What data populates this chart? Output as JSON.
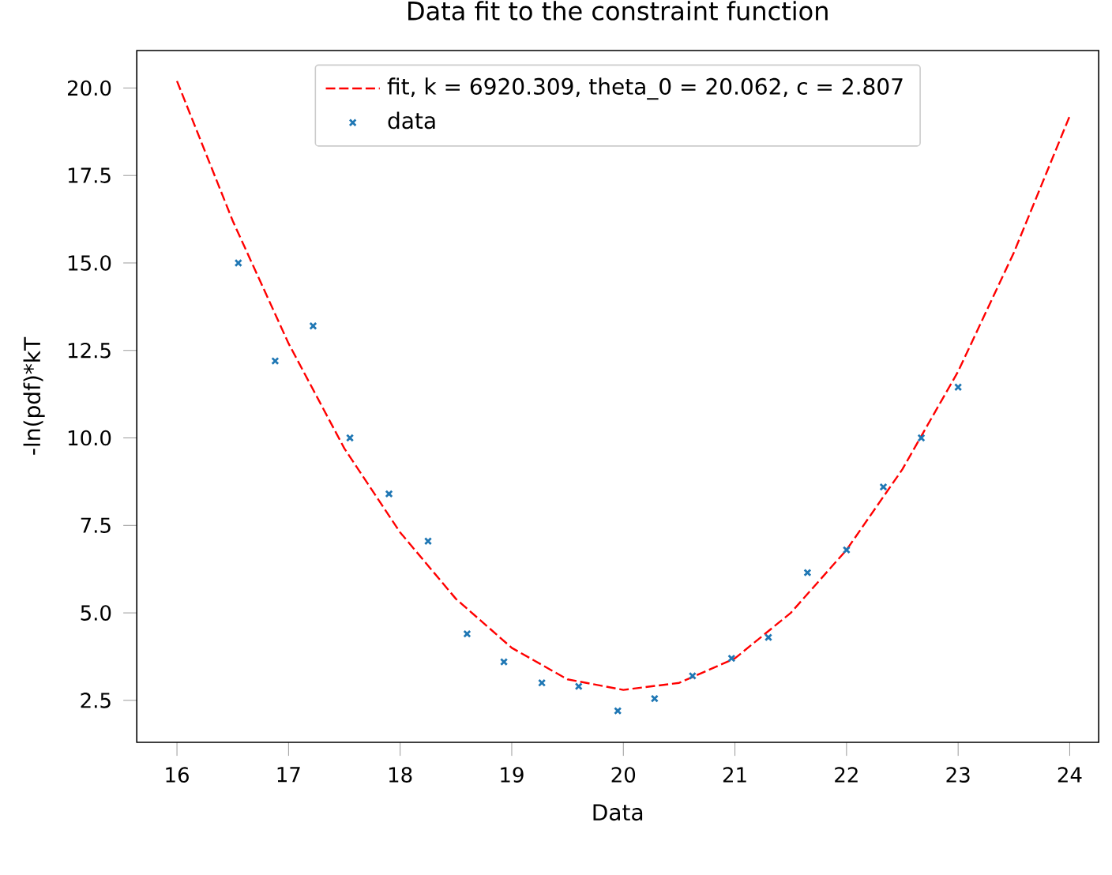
{
  "chart_data": {
    "type": "scatter",
    "title": "Data fit to the constraint function",
    "xlabel": "Data",
    "ylabel": "-ln(pdf)*kT",
    "xlim": [
      15.64,
      24.26
    ],
    "ylim": [
      1.3,
      21.07
    ],
    "xticks": [
      16,
      17,
      18,
      19,
      20,
      21,
      22,
      23,
      24
    ],
    "yticks": [
      {
        "value": 2.5,
        "label": "2.5"
      },
      {
        "value": 5,
        "label": "5.0"
      },
      {
        "value": 7.5,
        "label": "7.5"
      },
      {
        "value": 10,
        "label": "10.0"
      },
      {
        "value": 12.5,
        "label": "12.5"
      },
      {
        "value": 15,
        "label": "15.0"
      },
      {
        "value": 17.5,
        "label": "17.5"
      },
      {
        "value": 20,
        "label": "20.0"
      }
    ],
    "legend": "top",
    "series": [
      {
        "name": "fit, k = 6920.309, theta_0 = 20.062, c = 2.807",
        "type": "line",
        "color": "#ff0000",
        "line_style": "dashed",
        "marker": "none",
        "x": [
          16,
          16.5,
          17,
          17.5,
          18,
          18.5,
          19,
          19.5,
          20,
          20.5,
          21,
          21.5,
          22,
          22.5,
          23,
          23.5,
          24
        ],
        "values": [
          20.2,
          16.2,
          12.7,
          9.7,
          7.3,
          5.4,
          4.0,
          3.1,
          2.8,
          3.0,
          3.7,
          5.0,
          6.8,
          9.1,
          11.9,
          15.3,
          19.2
        ]
      },
      {
        "name": "data",
        "type": "scatter",
        "color": "#1f77b4",
        "marker": "cross",
        "x": [
          16.55,
          16.88,
          17.22,
          17.55,
          17.9,
          18.25,
          18.6,
          18.93,
          19.27,
          19.6,
          19.95,
          20.28,
          20.62,
          20.97,
          21.3,
          21.65,
          22.0,
          22.33,
          22.67,
          23.0
        ],
        "values": [
          15.0,
          12.2,
          13.2,
          10.0,
          8.4,
          7.05,
          4.4,
          3.6,
          3.0,
          2.9,
          2.2,
          2.55,
          3.2,
          3.7,
          4.3,
          6.15,
          6.8,
          8.6,
          10.0,
          11.45
        ]
      }
    ]
  }
}
